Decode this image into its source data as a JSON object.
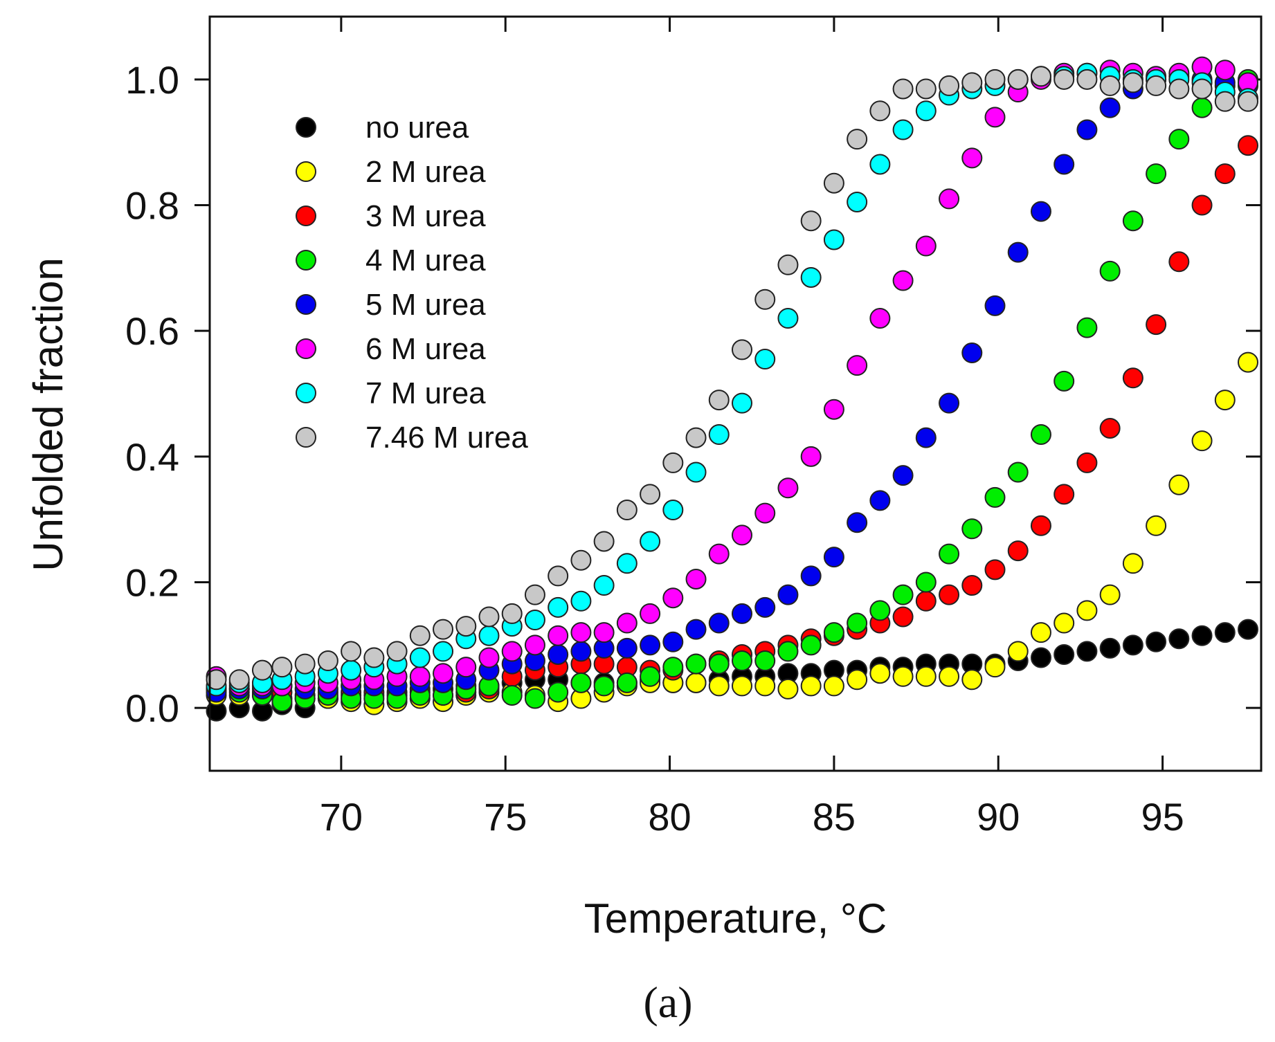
{
  "chart_data": {
    "type": "scatter",
    "title": "",
    "xlabel": "Temperature, °C",
    "ylabel": "Unfolded fraction",
    "xlim": [
      66,
      98
    ],
    "ylim": [
      -0.1,
      1.1
    ],
    "x_ticks": [
      70,
      75,
      80,
      85,
      90,
      95
    ],
    "x_tick_labels": [
      "70",
      "75",
      "80",
      "85",
      "90",
      "95"
    ],
    "y_ticks": [
      0.0,
      0.2,
      0.4,
      0.6,
      0.8,
      1.0
    ],
    "y_tick_labels": [
      "0.0",
      "0.2",
      "0.4",
      "0.6",
      "0.8",
      "1.0"
    ],
    "legend_position": "upper-left",
    "caption": "(a)",
    "series": [
      {
        "name": "no urea",
        "color": "#000000",
        "x": [
          66.2,
          66.9,
          67.6,
          68.2,
          68.9,
          69.6,
          70.3,
          71.0,
          71.7,
          72.4,
          73.1,
          73.8,
          74.5,
          75.2,
          75.9,
          76.6,
          77.3,
          78.0,
          78.7,
          79.4,
          80.1,
          80.8,
          81.5,
          82.2,
          82.9,
          83.6,
          84.3,
          85.0,
          85.7,
          86.4,
          87.1,
          87.8,
          88.5,
          89.2,
          89.9,
          90.6,
          91.3,
          92.0,
          92.7,
          93.4,
          94.1,
          94.8,
          95.5,
          96.2,
          96.9,
          97.6
        ],
        "y": [
          -0.005,
          0.0,
          -0.005,
          0.005,
          0.0,
          0.015,
          0.02,
          0.02,
          0.025,
          0.03,
          0.03,
          0.035,
          0.035,
          0.04,
          0.045,
          0.045,
          0.04,
          0.04,
          0.04,
          0.045,
          0.04,
          0.04,
          0.045,
          0.05,
          0.05,
          0.055,
          0.055,
          0.06,
          0.06,
          0.065,
          0.065,
          0.07,
          0.07,
          0.07,
          0.07,
          0.075,
          0.08,
          0.085,
          0.09,
          0.095,
          0.1,
          0.105,
          0.11,
          0.115,
          0.12,
          0.125
        ]
      },
      {
        "name": "2 M urea",
        "color": "#ffff00",
        "x": [
          66.2,
          66.9,
          67.6,
          68.2,
          68.9,
          69.6,
          70.3,
          71.0,
          71.7,
          72.4,
          73.1,
          73.8,
          74.5,
          75.2,
          75.9,
          76.6,
          77.3,
          78.0,
          78.7,
          79.4,
          80.1,
          80.8,
          81.5,
          82.2,
          82.9,
          83.6,
          84.3,
          85.0,
          85.7,
          86.4,
          87.1,
          87.8,
          88.5,
          89.2,
          89.9,
          90.6,
          91.3,
          92.0,
          92.7,
          93.4,
          94.1,
          94.8,
          95.5,
          96.2,
          96.9,
          97.6
        ],
        "y": [
          0.02,
          0.02,
          0.02,
          0.015,
          0.015,
          0.015,
          0.01,
          0.005,
          0.01,
          0.015,
          0.01,
          0.02,
          0.025,
          0.025,
          0.02,
          0.01,
          0.015,
          0.025,
          0.035,
          0.04,
          0.04,
          0.04,
          0.035,
          0.035,
          0.035,
          0.03,
          0.035,
          0.035,
          0.045,
          0.055,
          0.05,
          0.05,
          0.05,
          0.045,
          0.065,
          0.09,
          0.12,
          0.135,
          0.155,
          0.18,
          0.23,
          0.29,
          0.355,
          0.425,
          0.49,
          0.55
        ]
      },
      {
        "name": "3 M urea",
        "color": "#ff0000",
        "x": [
          66.2,
          66.9,
          67.6,
          68.2,
          68.9,
          69.6,
          70.3,
          71.0,
          71.7,
          72.4,
          73.1,
          73.8,
          74.5,
          75.2,
          75.9,
          76.6,
          77.3,
          78.0,
          78.7,
          79.4,
          80.1,
          80.8,
          81.5,
          82.2,
          82.9,
          83.6,
          84.3,
          85.0,
          85.7,
          86.4,
          87.1,
          87.8,
          88.5,
          89.2,
          89.9,
          90.6,
          91.3,
          92.0,
          92.7,
          93.4,
          94.1,
          94.8,
          95.5,
          96.2,
          96.9,
          97.6
        ],
        "y": [
          0.03,
          0.03,
          0.025,
          0.025,
          0.02,
          0.025,
          0.025,
          0.025,
          0.02,
          0.025,
          0.02,
          0.025,
          0.03,
          0.05,
          0.06,
          0.065,
          0.07,
          0.07,
          0.065,
          0.06,
          0.06,
          0.07,
          0.075,
          0.085,
          0.09,
          0.1,
          0.11,
          0.115,
          0.125,
          0.135,
          0.145,
          0.17,
          0.18,
          0.195,
          0.22,
          0.25,
          0.29,
          0.34,
          0.39,
          0.445,
          0.525,
          0.61,
          0.71,
          0.8,
          0.85,
          0.895
        ]
      },
      {
        "name": "4 M urea",
        "color": "#00ee00",
        "x": [
          66.2,
          66.9,
          67.6,
          68.2,
          68.9,
          69.6,
          70.3,
          71.0,
          71.7,
          72.4,
          73.1,
          73.8,
          74.5,
          75.2,
          75.9,
          76.6,
          77.3,
          78.0,
          78.7,
          79.4,
          80.1,
          80.8,
          81.5,
          82.2,
          82.9,
          83.6,
          84.3,
          85.0,
          85.7,
          86.4,
          87.1,
          87.8,
          88.5,
          89.2,
          89.9,
          90.6,
          91.3,
          92.0,
          92.7,
          93.4,
          94.1,
          94.8,
          95.5,
          96.2,
          96.9,
          97.6
        ],
        "y": [
          0.03,
          0.025,
          0.02,
          0.01,
          0.015,
          0.02,
          0.015,
          0.015,
          0.015,
          0.02,
          0.02,
          0.03,
          0.035,
          0.02,
          0.015,
          0.025,
          0.04,
          0.035,
          0.04,
          0.05,
          0.065,
          0.07,
          0.07,
          0.075,
          0.075,
          0.09,
          0.1,
          0.12,
          0.135,
          0.155,
          0.18,
          0.2,
          0.245,
          0.285,
          0.335,
          0.375,
          0.435,
          0.52,
          0.605,
          0.695,
          0.775,
          0.85,
          0.905,
          0.955,
          0.99,
          1.0
        ]
      },
      {
        "name": "5 M urea",
        "color": "#0000ee",
        "x": [
          66.2,
          66.9,
          67.6,
          68.2,
          68.9,
          69.6,
          70.3,
          71.0,
          71.7,
          72.4,
          73.1,
          73.8,
          74.5,
          75.2,
          75.9,
          76.6,
          77.3,
          78.0,
          78.7,
          79.4,
          80.1,
          80.8,
          81.5,
          82.2,
          82.9,
          83.6,
          84.3,
          85.0,
          85.7,
          86.4,
          87.1,
          87.8,
          88.5,
          89.2,
          89.9,
          90.6,
          91.3,
          92.0,
          92.7,
          93.4,
          94.1,
          94.8,
          95.5,
          96.2,
          96.9,
          97.6
        ],
        "y": [
          0.025,
          0.03,
          0.03,
          0.035,
          0.03,
          0.03,
          0.035,
          0.035,
          0.035,
          0.04,
          0.04,
          0.045,
          0.06,
          0.07,
          0.075,
          0.085,
          0.09,
          0.095,
          0.095,
          0.1,
          0.105,
          0.125,
          0.135,
          0.15,
          0.16,
          0.18,
          0.21,
          0.24,
          0.295,
          0.33,
          0.37,
          0.43,
          0.485,
          0.565,
          0.64,
          0.725,
          0.79,
          0.865,
          0.92,
          0.955,
          0.985,
          1.0,
          1.005,
          1.0,
          0.995,
          0.99
        ]
      },
      {
        "name": "6 M urea",
        "color": "#ff00ff",
        "x": [
          66.2,
          66.9,
          67.6,
          68.2,
          68.9,
          69.6,
          70.3,
          71.0,
          71.7,
          72.4,
          73.1,
          73.8,
          74.5,
          75.2,
          75.9,
          76.6,
          77.3,
          78.0,
          78.7,
          79.4,
          80.1,
          80.8,
          81.5,
          82.2,
          82.9,
          83.6,
          84.3,
          85.0,
          85.7,
          86.4,
          87.1,
          87.8,
          88.5,
          89.2,
          89.9,
          90.6,
          91.3,
          92.0,
          92.7,
          93.4,
          94.1,
          94.8,
          95.5,
          96.2,
          96.9,
          97.6
        ],
        "y": [
          0.05,
          0.035,
          0.035,
          0.035,
          0.04,
          0.04,
          0.045,
          0.045,
          0.05,
          0.05,
          0.055,
          0.065,
          0.08,
          0.09,
          0.1,
          0.115,
          0.12,
          0.12,
          0.135,
          0.15,
          0.175,
          0.205,
          0.245,
          0.275,
          0.31,
          0.35,
          0.4,
          0.475,
          0.545,
          0.62,
          0.68,
          0.735,
          0.81,
          0.875,
          0.94,
          0.98,
          1.0,
          1.01,
          1.01,
          1.015,
          1.01,
          1.005,
          1.01,
          1.02,
          1.015,
          0.995
        ]
      },
      {
        "name": "7 M urea",
        "color": "#00ffff",
        "x": [
          66.2,
          66.9,
          67.6,
          68.2,
          68.9,
          69.6,
          70.3,
          71.0,
          71.7,
          72.4,
          73.1,
          73.8,
          74.5,
          75.2,
          75.9,
          76.6,
          77.3,
          78.0,
          78.7,
          79.4,
          80.1,
          80.8,
          81.5,
          82.2,
          82.9,
          83.6,
          84.3,
          85.0,
          85.7,
          86.4,
          87.1,
          87.8,
          88.5,
          89.2,
          89.9,
          90.6,
          91.3,
          92.0,
          92.7,
          93.4,
          94.1,
          94.8,
          95.5,
          96.2,
          96.9,
          97.6
        ],
        "y": [
          0.035,
          0.04,
          0.04,
          0.045,
          0.05,
          0.055,
          0.06,
          0.065,
          0.07,
          0.08,
          0.09,
          0.11,
          0.115,
          0.13,
          0.14,
          0.16,
          0.17,
          0.195,
          0.23,
          0.265,
          0.315,
          0.375,
          0.435,
          0.485,
          0.555,
          0.62,
          0.685,
          0.745,
          0.805,
          0.865,
          0.92,
          0.95,
          0.975,
          0.985,
          0.99,
          1.0,
          1.005,
          1.005,
          1.01,
          1.005,
          1.0,
          1.0,
          1.0,
          0.995,
          0.98,
          0.97
        ]
      },
      {
        "name": "7.46 M urea",
        "color": "#c8c8c8",
        "x": [
          66.2,
          66.9,
          67.6,
          68.2,
          68.9,
          69.6,
          70.3,
          71.0,
          71.7,
          72.4,
          73.1,
          73.8,
          74.5,
          75.2,
          75.9,
          76.6,
          77.3,
          78.0,
          78.7,
          79.4,
          80.1,
          80.8,
          81.5,
          82.2,
          82.9,
          83.6,
          84.3,
          85.0,
          85.7,
          86.4,
          87.1,
          87.8,
          88.5,
          89.2,
          89.9,
          90.6,
          91.3,
          92.0,
          92.7,
          93.4,
          94.1,
          94.8,
          95.5,
          96.2,
          96.9,
          97.6
        ],
        "y": [
          0.045,
          0.045,
          0.06,
          0.065,
          0.07,
          0.075,
          0.09,
          0.08,
          0.09,
          0.115,
          0.125,
          0.13,
          0.145,
          0.15,
          0.18,
          0.21,
          0.235,
          0.265,
          0.315,
          0.34,
          0.39,
          0.43,
          0.49,
          0.57,
          0.65,
          0.705,
          0.775,
          0.835,
          0.905,
          0.95,
          0.985,
          0.985,
          0.99,
          0.995,
          1.0,
          1.0,
          1.005,
          1.0,
          1.0,
          0.99,
          0.995,
          0.99,
          0.985,
          0.985,
          0.965,
          0.965
        ]
      }
    ]
  }
}
